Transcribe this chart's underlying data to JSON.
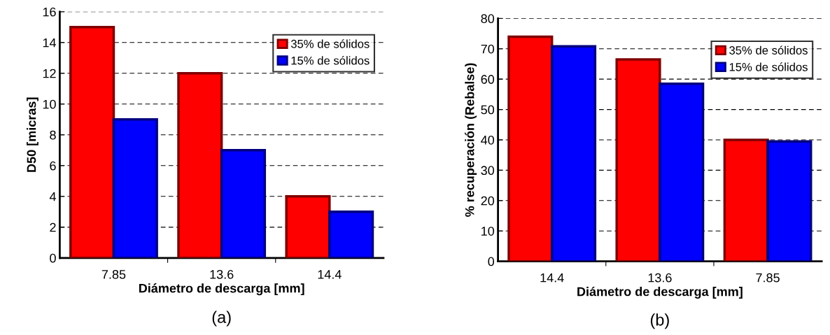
{
  "chart_data": [
    {
      "type": "bar",
      "categories": [
        "7.85",
        "13.6",
        "14.4"
      ],
      "xlabel": "Diámetro de descarga [mm]",
      "ylabel": "D50 [micras]",
      "ylim": [
        0,
        16
      ],
      "yticks": [
        0,
        2,
        4,
        6,
        8,
        10,
        12,
        14,
        16
      ],
      "grid": "y",
      "legend": "top right",
      "annotations": [
        "(a)"
      ],
      "series": [
        {
          "name": "35% de sólidos",
          "color": "#ff0000",
          "values": [
            15,
            12,
            4
          ]
        },
        {
          "name": "15% de sólidos",
          "color": "#0000ff",
          "values": [
            9,
            7,
            3
          ]
        }
      ]
    },
    {
      "type": "bar",
      "categories": [
        "14.4",
        "13.6",
        "7.85"
      ],
      "xlabel": "Diámetro de descarga [mm]",
      "ylabel": "% recuperación (Rebalse)",
      "ylim": [
        0,
        80
      ],
      "yticks": [
        0,
        10,
        20,
        30,
        40,
        50,
        60,
        70,
        80
      ],
      "grid": "y",
      "legend": "top right",
      "annotations": [
        "(b)"
      ],
      "series": [
        {
          "name": "35% de sólidos",
          "color": "#ff0000",
          "values": [
            74,
            66.5,
            40
          ]
        },
        {
          "name": "15% de sólidos",
          "color": "#0000ff",
          "values": [
            70.8,
            58.5,
            39.5
          ]
        }
      ]
    }
  ]
}
